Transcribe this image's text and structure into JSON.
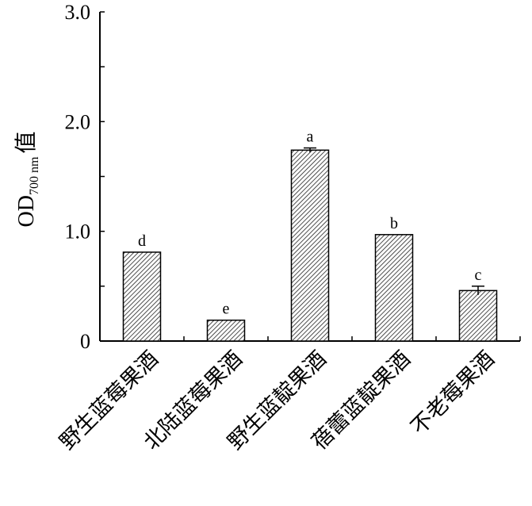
{
  "chart_data": {
    "type": "bar",
    "categories": [
      "野生蓝莓果酒",
      "北陆蓝莓果酒",
      "野生蓝靛果酒",
      "蓓蕾蓝靛果酒",
      "不老莓果酒"
    ],
    "values": [
      0.81,
      0.19,
      1.74,
      0.97,
      0.46
    ],
    "errors": [
      0.0,
      0.0,
      0.02,
      0.0,
      0.04
    ],
    "significance": [
      "d",
      "e",
      "a",
      "b",
      "c"
    ],
    "ylabel": {
      "main": "OD",
      "subscript": "700 nm",
      "suffix": "值"
    },
    "ylim": [
      0,
      3.0
    ],
    "yticks": [
      {
        "value": 0,
        "label": "0"
      },
      {
        "value": 1.0,
        "label": "1.0"
      },
      {
        "value": 2.0,
        "label": "2.0"
      },
      {
        "value": 3.0,
        "label": "3.0"
      }
    ],
    "bar_pattern": "diagonal-hatch",
    "bar_color": "#000000",
    "grid": false,
    "legend": "none"
  }
}
